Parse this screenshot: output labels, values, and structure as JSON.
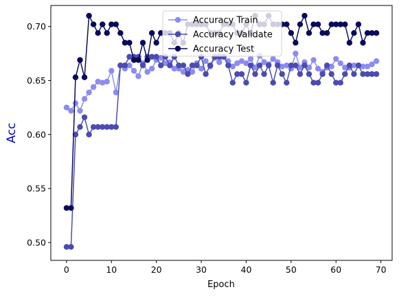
{
  "chart_data": {
    "type": "line",
    "title": "",
    "xlabel": "Epoch",
    "ylabel": "Acc",
    "ylabel_color": "#0000cc",
    "xlim": [
      -3.5,
      72.5
    ],
    "ylim": [
      0.4835,
      0.7195
    ],
    "xticks": [
      0,
      10,
      20,
      30,
      40,
      50,
      60,
      70
    ],
    "yticks": [
      0.5,
      0.55,
      0.6,
      0.65,
      0.7
    ],
    "ytick_labels": [
      "0.50",
      "0.55",
      "0.60",
      "0.65",
      "0.70"
    ],
    "grid": false,
    "legend_position": "upper center",
    "x": [
      0,
      1,
      2,
      3,
      4,
      5,
      6,
      7,
      8,
      9,
      10,
      11,
      12,
      13,
      14,
      15,
      16,
      17,
      18,
      19,
      20,
      21,
      22,
      23,
      24,
      25,
      26,
      27,
      28,
      29,
      30,
      31,
      32,
      33,
      34,
      35,
      36,
      37,
      38,
      39,
      40,
      41,
      42,
      43,
      44,
      45,
      46,
      47,
      48,
      49,
      50,
      51,
      52,
      53,
      54,
      55,
      56,
      57,
      58,
      59,
      60,
      61,
      62,
      63,
      64,
      65,
      66,
      67,
      68,
      69
    ],
    "series": [
      {
        "name": "Accuracy Train",
        "color": "#8c8cf0",
        "values": [
          0.625,
          0.622,
          0.629,
          0.622,
          0.633,
          0.639,
          0.644,
          0.649,
          0.648,
          0.649,
          0.659,
          0.639,
          0.664,
          0.661,
          0.664,
          0.659,
          0.654,
          0.666,
          0.658,
          0.661,
          0.669,
          0.671,
          0.666,
          0.667,
          0.661,
          0.661,
          0.658,
          0.66,
          0.658,
          0.666,
          0.661,
          0.668,
          0.663,
          0.671,
          0.667,
          0.672,
          0.668,
          0.663,
          0.666,
          0.668,
          0.666,
          0.67,
          0.662,
          0.673,
          0.667,
          0.665,
          0.67,
          0.667,
          0.663,
          0.664,
          0.661,
          0.675,
          0.662,
          0.667,
          0.662,
          0.669,
          0.661,
          0.658,
          0.662,
          0.663,
          0.67,
          0.666,
          0.662,
          0.662,
          0.664,
          0.664,
          0.663,
          0.663,
          0.665,
          0.668
        ]
      },
      {
        "name": "Accuracy Validate",
        "color": "#4b4bb0",
        "values": [
          0.496,
          0.496,
          0.6,
          0.607,
          0.616,
          0.6,
          0.607,
          0.607,
          0.607,
          0.607,
          0.607,
          0.607,
          0.664,
          0.664,
          0.672,
          0.672,
          0.672,
          0.664,
          0.672,
          0.672,
          0.672,
          0.664,
          0.672,
          0.664,
          0.672,
          0.664,
          0.664,
          0.656,
          0.664,
          0.664,
          0.672,
          0.656,
          0.664,
          0.672,
          0.672,
          0.672,
          0.664,
          0.648,
          0.656,
          0.656,
          0.648,
          0.664,
          0.656,
          0.664,
          0.656,
          0.664,
          0.648,
          0.664,
          0.656,
          0.648,
          0.664,
          0.664,
          0.656,
          0.664,
          0.656,
          0.648,
          0.648,
          0.656,
          0.664,
          0.656,
          0.648,
          0.648,
          0.656,
          0.664,
          0.656,
          0.664,
          0.656,
          0.656,
          0.656,
          0.656
        ]
      },
      {
        "name": "Accuracy Test",
        "color": "#0a0a5a",
        "values": [
          0.532,
          0.532,
          0.653,
          0.669,
          0.653,
          0.71,
          0.702,
          0.694,
          0.702,
          0.694,
          0.702,
          0.702,
          0.694,
          0.685,
          0.685,
          0.669,
          0.669,
          0.685,
          0.669,
          0.694,
          0.685,
          0.694,
          0.694,
          0.694,
          0.685,
          0.694,
          0.685,
          0.702,
          0.702,
          0.702,
          0.702,
          0.702,
          0.694,
          0.694,
          0.694,
          0.702,
          0.702,
          0.702,
          0.694,
          0.694,
          0.702,
          0.694,
          0.71,
          0.702,
          0.702,
          0.71,
          0.702,
          0.702,
          0.702,
          0.702,
          0.694,
          0.685,
          0.702,
          0.71,
          0.694,
          0.702,
          0.702,
          0.694,
          0.694,
          0.702,
          0.702,
          0.702,
          0.702,
          0.685,
          0.694,
          0.702,
          0.685,
          0.694,
          0.694,
          0.694
        ]
      }
    ]
  }
}
